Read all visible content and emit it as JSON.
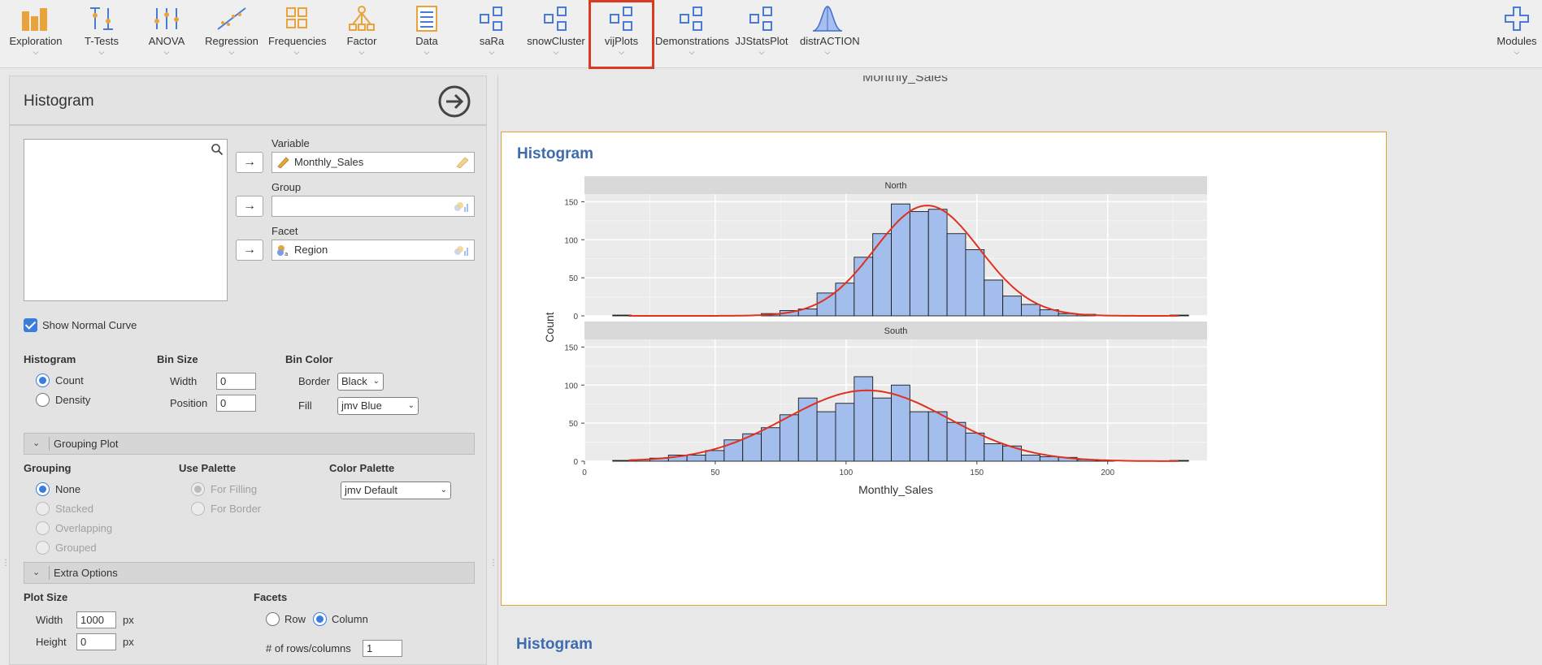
{
  "toolbar": {
    "items": [
      {
        "label": "Exploration",
        "icon": "exploration-icon"
      },
      {
        "label": "T-Tests",
        "icon": "t-tests-icon"
      },
      {
        "label": "ANOVA",
        "icon": "anova-icon"
      },
      {
        "label": "Regression",
        "icon": "regression-icon"
      },
      {
        "label": "Frequencies",
        "icon": "frequencies-icon"
      },
      {
        "label": "Factor",
        "icon": "factor-icon"
      },
      {
        "label": "Data",
        "icon": "data-icon"
      },
      {
        "label": "saRa",
        "icon": "module-icon"
      },
      {
        "label": "snowCluster",
        "icon": "module-icon"
      },
      {
        "label": "vijPlots",
        "icon": "module-icon"
      },
      {
        "label": "Demonstrations",
        "icon": "module-icon"
      },
      {
        "label": "JJStatsPlot",
        "icon": "module-icon"
      },
      {
        "label": "distrACTION",
        "icon": "distribution-icon"
      },
      {
        "label": "Modules",
        "icon": "plus-icon"
      }
    ],
    "active": "vijPlots"
  },
  "options": {
    "title": "Histogram",
    "variable_label": "Variable",
    "variable_value": "Monthly_Sales",
    "group_label": "Group",
    "group_value": "",
    "facet_label": "Facet",
    "facet_value": "Region",
    "show_normal_curve": "Show Normal Curve",
    "histogram_heading": "Histogram",
    "count": "Count",
    "density": "Density",
    "bin_size_heading": "Bin Size",
    "width_label": "Width",
    "width_value": "0",
    "position_label": "Position",
    "position_value": "0",
    "bin_color_heading": "Bin Color",
    "border_label": "Border",
    "border_value": "Black",
    "fill_label": "Fill",
    "fill_value": "jmv Blue",
    "grouping_plot_section": "Grouping Plot",
    "grouping_heading": "Grouping",
    "grouping_none": "None",
    "grouping_stacked": "Stacked",
    "grouping_overlapping": "Overlapping",
    "grouping_grouped": "Grouped",
    "use_palette_heading": "Use Palette",
    "for_filling": "For Filling",
    "for_border": "For Border",
    "color_palette_heading": "Color Palette",
    "color_palette_value": "jmv Default",
    "extra_options_section": "Extra Options",
    "plot_size_heading": "Plot Size",
    "plot_width_label": "Width",
    "plot_width_value": "1000",
    "plot_height_label": "Height",
    "plot_height_value": "0",
    "px": "px",
    "facets_heading": "Facets",
    "facets_row": "Row",
    "facets_column": "Column",
    "rows_columns_label": "# of rows/columns",
    "rows_columns_value": "1"
  },
  "results": {
    "top_label": "Monthly_Sales",
    "heading": "Histogram",
    "heading_next": "Histogram"
  },
  "colors": {
    "bar_fill": "#a3bdec",
    "bar_border": "#1a1a1a",
    "curve": "#e0311f",
    "panel_bg": "#ebebeb",
    "strip_bg": "#d9d9d9",
    "heading": "#3e6bb0"
  },
  "chart_data": {
    "type": "bar",
    "xlabel": "Monthly_Sales",
    "ylabel": "Count",
    "xlim": [
      0,
      238
    ],
    "ylim": [
      0,
      160
    ],
    "x_ticks": [
      0,
      50,
      100,
      150,
      200
    ],
    "y_ticks": [
      0,
      50,
      100,
      150
    ],
    "bin_width": 7.1,
    "bin_starts": [
      10.8,
      17.9,
      25.0,
      32.1,
      39.2,
      46.3,
      53.4,
      60.5,
      67.6,
      74.7,
      81.8,
      88.9,
      96.0,
      103.1,
      110.2,
      117.3,
      124.4,
      131.5,
      138.6,
      145.7,
      152.8,
      159.9,
      167.0,
      174.1,
      181.2,
      188.3,
      195.4,
      202.5,
      209.6,
      216.7,
      223.8
    ],
    "facets": [
      {
        "name": "North",
        "counts": [
          1,
          0,
          0,
          0,
          0,
          0,
          0,
          0,
          3,
          7,
          9,
          30,
          43,
          77,
          108,
          147,
          137,
          140,
          108,
          87,
          47,
          26,
          15,
          8,
          3,
          2,
          0,
          0,
          0,
          0,
          1
        ],
        "normal_mean": 131,
        "normal_peak": 145,
        "normal_sd": 20
      },
      {
        "name": "South",
        "counts": [
          1,
          2,
          4,
          8,
          8,
          14,
          28,
          36,
          44,
          61,
          83,
          65,
          76,
          111,
          83,
          100,
          65,
          65,
          51,
          37,
          23,
          20,
          8,
          6,
          5,
          2,
          1,
          0,
          0,
          0,
          1
        ],
        "normal_mean": 108,
        "normal_peak": 93,
        "normal_sd": 31
      }
    ]
  }
}
